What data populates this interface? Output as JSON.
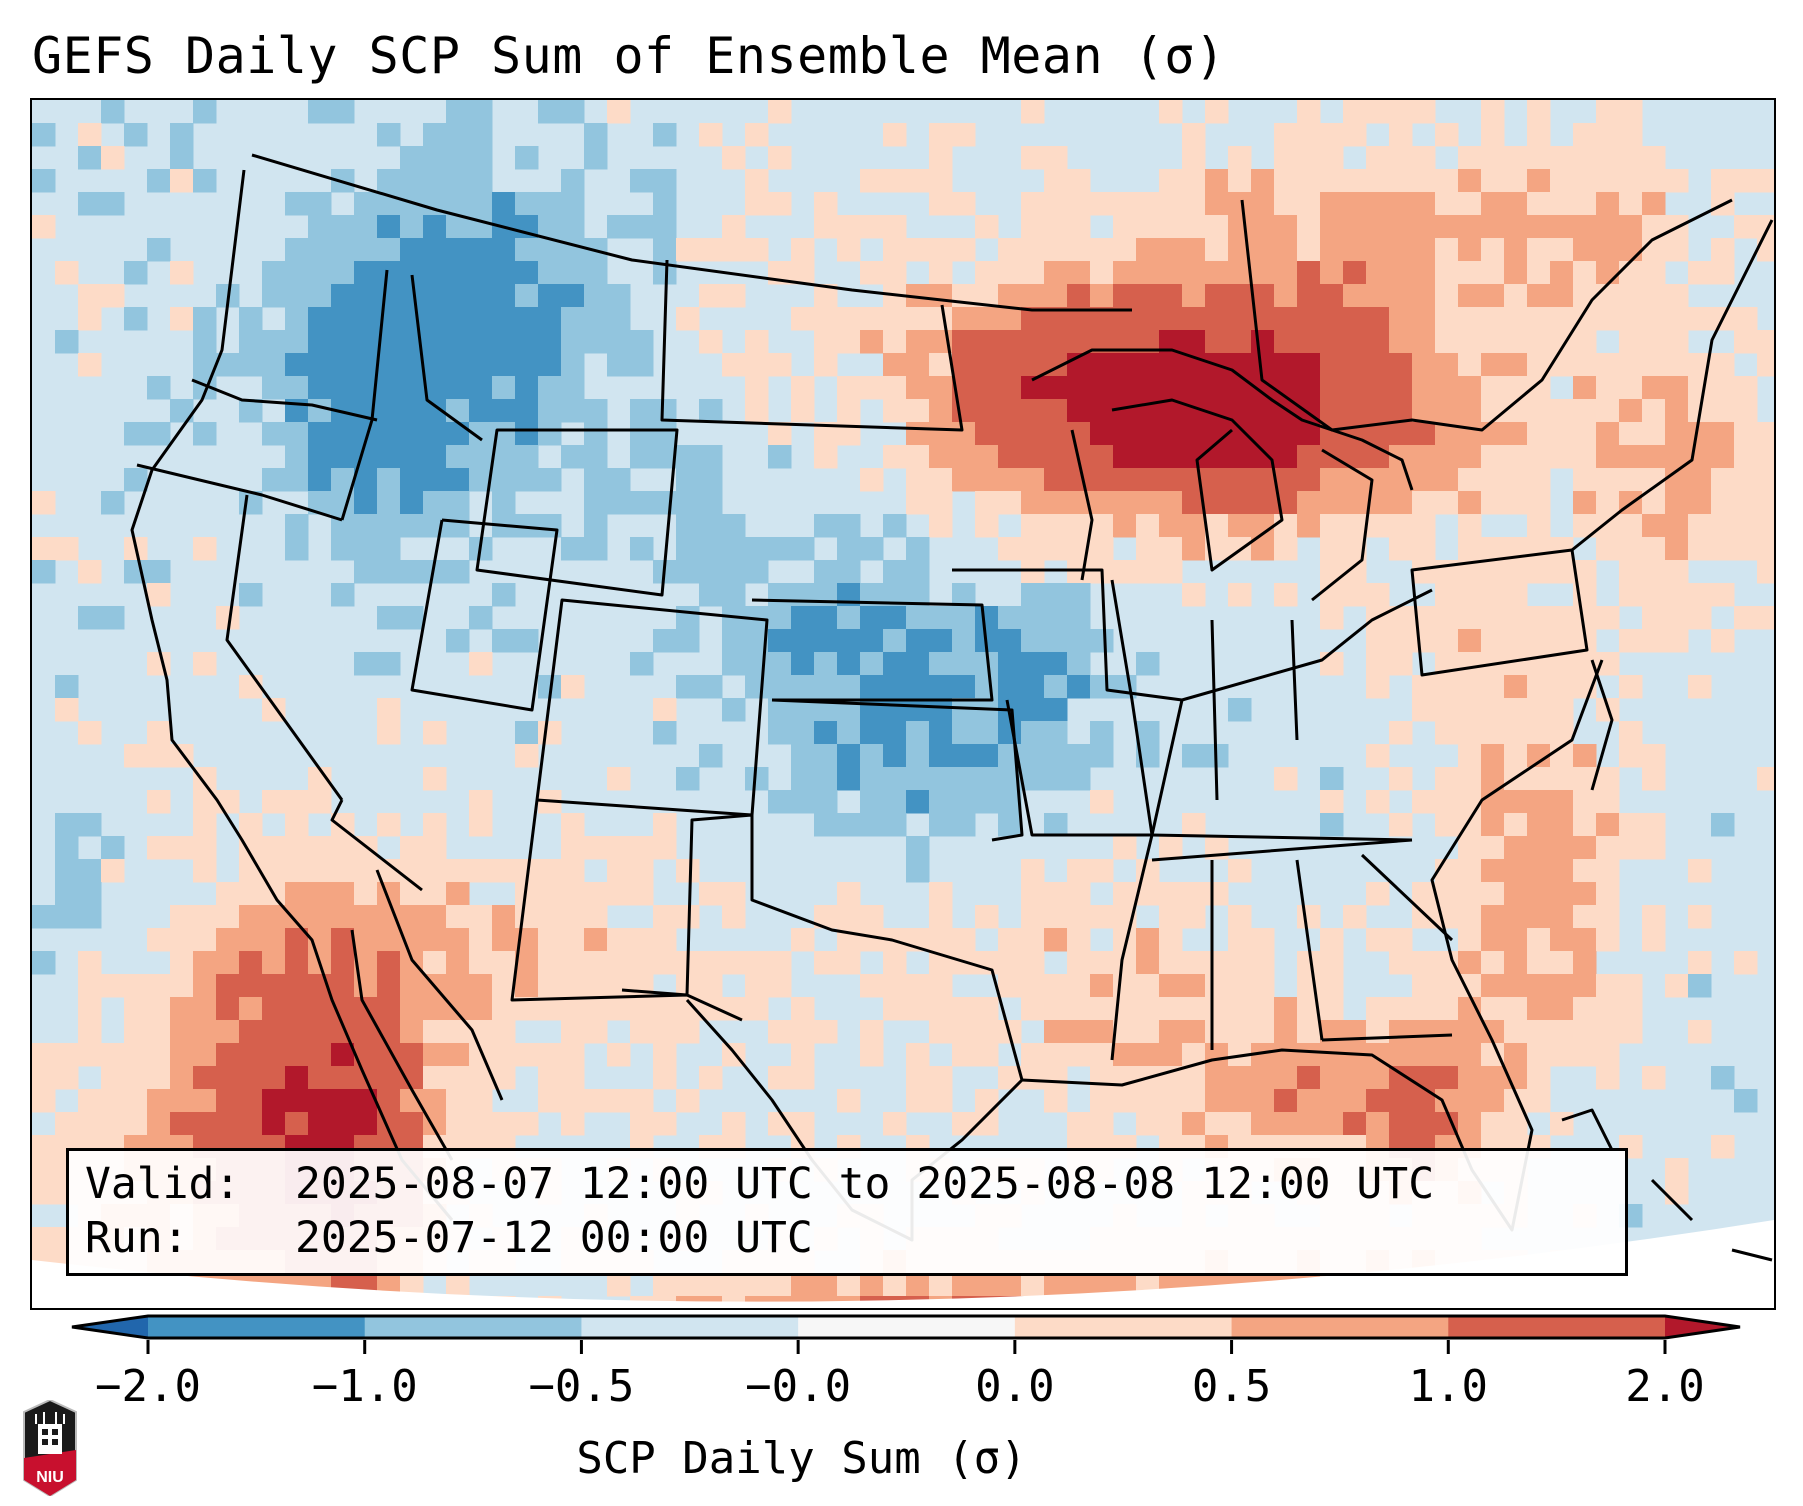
{
  "title": "GEFS Daily SCP Sum of Ensemble Mean (σ)",
  "info_box": {
    "valid_label": "Valid:",
    "valid_value": "2025-08-07 12:00 UTC to 2025-08-08 12:00 UTC",
    "run_label": "Run:",
    "run_value": "2025-07-12 00:00 UTC"
  },
  "logo": {
    "text": "NIU",
    "colors": {
      "shield": "#1a1a1a",
      "band": "#c8102e"
    }
  },
  "chart_data": {
    "type": "heatmap",
    "title": "GEFS Daily SCP Sum of Ensemble Mean (σ)",
    "map_domain": "Contiguous United States with southern Canada, northern Mexico, Gulf of Mexico and Caribbean",
    "colorbar": {
      "label": "SCP Daily Sum (σ)",
      "orientation": "horizontal",
      "extend": "both",
      "boundaries": [
        -2.0,
        -1.0,
        -0.5,
        -0.0,
        0.0,
        0.5,
        1.0,
        2.0
      ],
      "tick_labels": [
        "−2.0",
        "−1.0",
        "−0.5",
        "−0.0",
        "0.0",
        "0.5",
        "1.0",
        "2.0"
      ],
      "colors": [
        "#4393c3",
        "#92c5de",
        "#d1e5f0",
        "#f7f7f7",
        "#fddbc7",
        "#f4a582",
        "#d6604d"
      ],
      "under_color": "#2166ac",
      "over_color": "#b2182b"
    },
    "regions": [
      {
        "name": "Upper Great Lakes (Lake Superior, northern Michigan, Ontario)",
        "level": "1.0 to >2.0"
      },
      {
        "name": "Southern Quebec / Ontario and New England offshore",
        "level": "0.0 to 1.0"
      },
      {
        "name": "Gulf of California and western Mexico coast",
        "level": "0.5 to >2.0"
      },
      {
        "name": "Florida Gulf coast and Gulf of Mexico",
        "level": "0.0 to 1.0"
      },
      {
        "name": "Southeast US Atlantic coast offshore",
        "level": "0.0 to 1.0"
      },
      {
        "name": "Idaho / Montana / Pacific Northwest",
        "level": "-1.0 to -0.5"
      },
      {
        "name": "Kansas / Oklahoma / Missouri",
        "level": "-1.0 to -0.5"
      },
      {
        "name": "Remainder of CONUS interior",
        "level": "-0.5 to 0.0"
      }
    ]
  }
}
